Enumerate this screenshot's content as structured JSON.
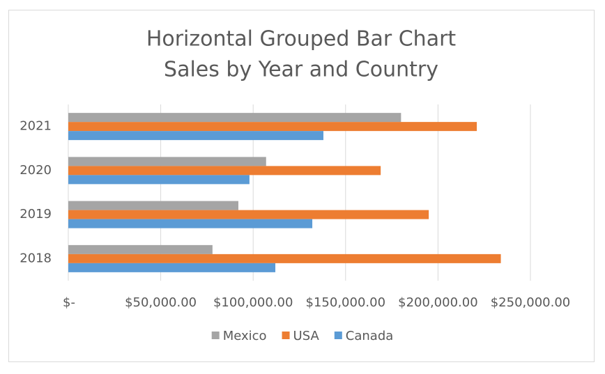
{
  "chart_data": {
    "type": "hbar",
    "title": "Horizontal Grouped Bar Chart",
    "subtitle": "Sales by Year and Country",
    "categories": [
      "2018",
      "2019",
      "2020",
      "2021"
    ],
    "series": [
      {
        "name": "Mexico",
        "color": "#a5a5a5",
        "values": [
          78000,
          92000,
          107000,
          180000
        ]
      },
      {
        "name": "USA",
        "color": "#ed7d31",
        "values": [
          234000,
          195000,
          169000,
          221000
        ]
      },
      {
        "name": "Canada",
        "color": "#5b9bd5",
        "values": [
          112000,
          132000,
          98000,
          138000
        ]
      }
    ],
    "xlim": [
      0,
      250000
    ],
    "xticks": [
      {
        "value": 0,
        "label": "$-"
      },
      {
        "value": 50000,
        "label": "$50,000.00"
      },
      {
        "value": 100000,
        "label": "$100,000.00"
      },
      {
        "value": 150000,
        "label": "$150,000.00"
      },
      {
        "value": 200000,
        "label": "$200,000.00"
      },
      {
        "value": 250000,
        "label": "$250,000.00"
      }
    ],
    "grid": true,
    "legend": "bottom"
  }
}
